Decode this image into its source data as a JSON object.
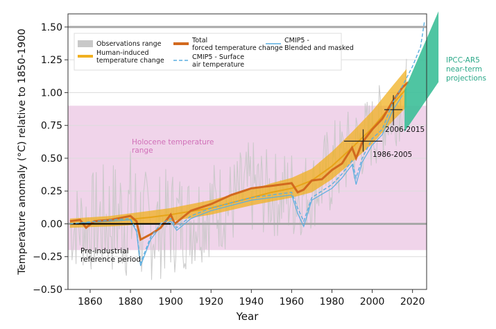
{
  "chart_data": {
    "type": "line",
    "xlabel": "Year",
    "ylabel": "Temperature anomaly (°C) relative to 1850-1900",
    "xlim": [
      1849,
      2027
    ],
    "ylim": [
      -0.5,
      1.6
    ],
    "x_ticks": [
      1860,
      1880,
      1900,
      1920,
      1940,
      1960,
      1980,
      2000,
      2020
    ],
    "y_ticks": [
      -0.5,
      -0.25,
      0.0,
      0.25,
      0.5,
      0.75,
      1.0,
      1.25,
      1.5
    ],
    "y_tick_labels": [
      "−0.50",
      "−0.25",
      "0.00",
      "0.25",
      "0.50",
      "0.75",
      "1.00",
      "1.25",
      "1.50"
    ],
    "grid": "horizontal",
    "legend_position": "top-left",
    "legend": [
      {
        "label": "Observations range",
        "style": "band",
        "color": "#c8c8c8"
      },
      {
        "label": "Human-induced temperature change",
        "style": "thick-line",
        "color": "#f0b020"
      },
      {
        "label": "Total forced temperature change",
        "style": "thick-line",
        "color": "#d2691e"
      },
      {
        "label": "CMIP5 - Surface air temperature",
        "style": "dashed-line",
        "color": "#5aaee0"
      },
      {
        "label": "CMIP5 - Blended and masked",
        "style": "thin-line",
        "color": "#5aaee0"
      }
    ],
    "colors": {
      "holocene_band": "#f0d4ea",
      "holocene_text": "#d070b8",
      "observations": "#c8c8c8",
      "human_induced": "#f0b020",
      "total_forced": "#d2691e",
      "cmip5": "#5aaee0",
      "projection": "#3cbf98",
      "projection_text": "#2aa888",
      "reference_lines": "#a8a8a8"
    },
    "holocene_range": [
      -0.2,
      0.9
    ],
    "reference_lines_y": [
      0.0,
      1.5
    ],
    "series": [
      {
        "name": "Human-induced temperature change",
        "x": [
          1850,
          1870,
          1890,
          1900,
          1920,
          1940,
          1950,
          1960,
          1970,
          1980,
          1990,
          2000,
          2010,
          2017
        ],
        "values": [
          0.0,
          0.02,
          0.05,
          0.07,
          0.12,
          0.2,
          0.24,
          0.27,
          0.33,
          0.44,
          0.58,
          0.73,
          0.91,
          1.03
        ],
        "band_lower": [
          -0.03,
          -0.02,
          0.0,
          0.02,
          0.07,
          0.14,
          0.17,
          0.2,
          0.24,
          0.34,
          0.47,
          0.61,
          0.78,
          0.89
        ],
        "band_upper": [
          0.04,
          0.06,
          0.1,
          0.12,
          0.18,
          0.26,
          0.31,
          0.35,
          0.42,
          0.55,
          0.7,
          0.86,
          1.05,
          1.18
        ]
      },
      {
        "name": "Total forced temperature change",
        "x": [
          1850,
          1855,
          1858,
          1862,
          1870,
          1880,
          1883,
          1885,
          1890,
          1895,
          1900,
          1902,
          1906,
          1910,
          1920,
          1930,
          1940,
          1950,
          1960,
          1963,
          1966,
          1970,
          1975,
          1980,
          1985,
          1990,
          1992,
          1995,
          2000,
          2005,
          2010,
          2015,
          2018
        ],
        "values": [
          0.02,
          0.03,
          -0.03,
          0.02,
          0.03,
          0.06,
          0.02,
          -0.12,
          -0.08,
          -0.03,
          0.07,
          0.0,
          0.05,
          0.1,
          0.15,
          0.22,
          0.27,
          0.29,
          0.31,
          0.24,
          0.26,
          0.33,
          0.34,
          0.41,
          0.46,
          0.58,
          0.5,
          0.62,
          0.72,
          0.8,
          0.93,
          1.04,
          1.08
        ]
      },
      {
        "name": "CMIP5 - Surface air temperature",
        "x": [
          1850,
          1870,
          1880,
          1883,
          1885,
          1890,
          1895,
          1900,
          1903,
          1910,
          1920,
          1940,
          1960,
          1963,
          1966,
          1970,
          1980,
          1985,
          1990,
          1992,
          1995,
          2000,
          2005,
          2010,
          2015,
          2020,
          2024,
          2026
        ],
        "values": [
          0.0,
          0.03,
          0.04,
          -0.05,
          -0.3,
          -0.1,
          0.0,
          0.04,
          -0.03,
          0.06,
          0.12,
          0.2,
          0.24,
          0.12,
          0.02,
          0.2,
          0.3,
          0.38,
          0.48,
          0.35,
          0.5,
          0.65,
          0.72,
          0.92,
          1.05,
          1.2,
          1.35,
          1.55
        ]
      },
      {
        "name": "CMIP5 - Blended and masked",
        "x": [
          1850,
          1870,
          1880,
          1883,
          1885,
          1890,
          1895,
          1900,
          1903,
          1910,
          1920,
          1940,
          1960,
          1963,
          1966,
          1970,
          1980,
          1985,
          1990,
          1992,
          1995,
          2000,
          2005,
          2010,
          2015
        ],
        "values": [
          0.0,
          0.02,
          0.03,
          -0.06,
          -0.32,
          -0.12,
          -0.02,
          0.02,
          -0.05,
          0.04,
          0.1,
          0.18,
          0.22,
          0.08,
          -0.02,
          0.18,
          0.27,
          0.35,
          0.45,
          0.3,
          0.47,
          0.6,
          0.68,
          0.86,
          0.98
        ]
      },
      {
        "name": "IPCC-AR5 near-term projections",
        "x": [
          2016,
          2026
        ],
        "upper": [
          1.02,
          1.62
        ],
        "lower": [
          0.7,
          1.08
        ]
      }
    ],
    "observations_range": {
      "x": [
        1850,
        1870,
        1880,
        1885,
        1890,
        1900,
        1910,
        1920,
        1930,
        1940,
        1950,
        1960,
        1970,
        1980,
        1990,
        2000,
        2010,
        2017
      ],
      "lower": [
        -0.35,
        -0.42,
        -0.45,
        -0.5,
        -0.45,
        -0.4,
        -0.35,
        -0.25,
        -0.2,
        -0.1,
        -0.1,
        -0.15,
        -0.05,
        0.05,
        0.25,
        0.4,
        0.55,
        0.7
      ],
      "upper": [
        0.3,
        0.5,
        0.6,
        0.5,
        0.35,
        0.45,
        0.4,
        0.5,
        0.5,
        0.65,
        0.55,
        0.6,
        0.55,
        0.8,
        0.9,
        1.0,
        1.2,
        1.28
      ]
    },
    "reference_period": {
      "label": "Pre-industrial reference period",
      "x": [
        1850,
        1900
      ],
      "y": 0.0
    },
    "decadal_markers": [
      {
        "label": "1986-2005",
        "x_range": [
          1986,
          2005
        ],
        "y": 0.63,
        "y_range": [
          0.55,
          0.72
        ]
      },
      {
        "label": "2006-2015",
        "x_range": [
          2006,
          2015
        ],
        "y": 0.87,
        "y_range": [
          0.75,
          0.98
        ]
      }
    ],
    "annotations": {
      "holocene": "Holocene temperature range",
      "projections": "IPCC-AR5 near-term projections"
    }
  }
}
